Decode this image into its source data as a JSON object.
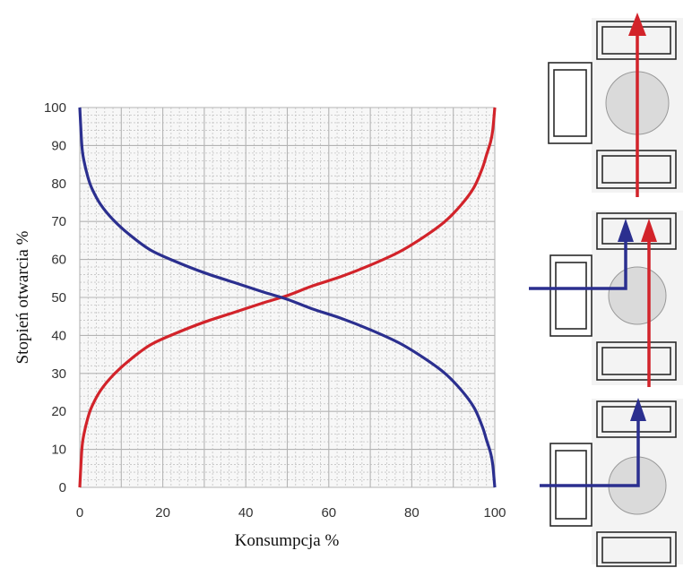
{
  "chart_data": {
    "type": "line",
    "xlabel": "Konsumpcja %",
    "ylabel": "Stopień otwarcia %",
    "xlim": [
      0,
      100
    ],
    "ylim": [
      0,
      100
    ],
    "x_ticks": [
      "0",
      "20",
      "40",
      "60",
      "80",
      "100"
    ],
    "y_ticks": [
      "0",
      "10",
      "20",
      "30",
      "40",
      "50",
      "60",
      "70",
      "80",
      "90",
      "100"
    ],
    "grid": true,
    "series": [
      {
        "color": "#d2232a",
        "x": [
          0,
          0.5,
          1,
          2,
          3,
          5,
          8,
          12,
          17,
          23,
          30,
          37,
          44,
          50,
          56,
          63,
          70,
          77,
          83,
          88,
          92,
          95,
          97,
          98,
          99,
          99.5,
          100
        ],
        "y": [
          0,
          10,
          14,
          18.5,
          21.5,
          25.5,
          29.5,
          33.5,
          37.5,
          40.5,
          43.5,
          46,
          48.5,
          50.5,
          53,
          55.5,
          58.5,
          62,
          66,
          70,
          74.5,
          79,
          84,
          87.5,
          91,
          94,
          100
        ]
      },
      {
        "color": "#2b2f8f",
        "x": [
          0,
          0.5,
          1,
          2,
          3,
          5,
          8,
          12,
          17,
          23,
          30,
          37,
          44,
          50,
          56,
          63,
          70,
          77,
          83,
          88,
          92,
          95,
          97,
          98,
          99,
          99.5,
          100
        ],
        "y": [
          100,
          90,
          86,
          81.5,
          78.5,
          74.5,
          70.5,
          66.5,
          62.5,
          59.5,
          56.5,
          54,
          51.5,
          49.5,
          47,
          44.5,
          41.5,
          38,
          34,
          30,
          25.5,
          21,
          16,
          12.5,
          9,
          6,
          0
        ]
      }
    ]
  },
  "valve_diagram": {
    "supply_color": "#d2232a",
    "return_color": "#2b2f8f"
  }
}
